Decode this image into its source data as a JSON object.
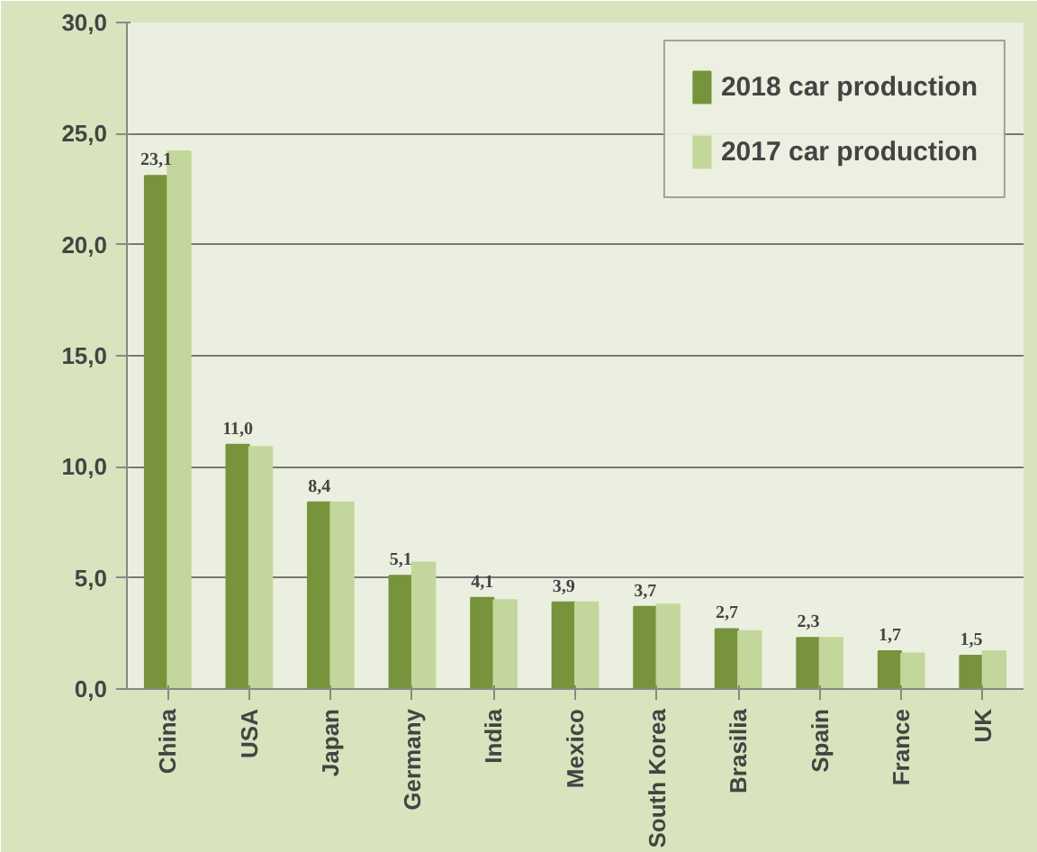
{
  "chart_data": {
    "type": "bar",
    "categories": [
      "China",
      "USA",
      "Japan",
      "Germany",
      "India",
      "Mexico",
      "South Korea",
      "Brasilia",
      "Spain",
      "France",
      "UK"
    ],
    "series": [
      {
        "name": "2018 car production",
        "color": "#77933c",
        "values": [
          23.1,
          11.0,
          8.4,
          5.1,
          4.1,
          3.9,
          3.7,
          2.7,
          2.3,
          1.7,
          1.5
        ],
        "value_labels": [
          "23,1",
          "11,0",
          "8,4",
          "5,1",
          "4,1",
          "3,9",
          "3,7",
          "2,7",
          "2,3",
          "1,7",
          "1,5"
        ]
      },
      {
        "name": "2017 car production",
        "color": "#c3d69b",
        "values": [
          24.2,
          10.9,
          8.4,
          5.7,
          4.0,
          3.9,
          3.8,
          2.6,
          2.3,
          1.6,
          1.7
        ]
      }
    ],
    "ylim": [
      0,
      30
    ],
    "yticks": [
      {
        "value": 0,
        "label": "0,0"
      },
      {
        "value": 5,
        "label": "5,0"
      },
      {
        "value": 10,
        "label": "10,0"
      },
      {
        "value": 15,
        "label": "15,0"
      },
      {
        "value": 20,
        "label": "20,0"
      },
      {
        "value": 25,
        "label": "25,0"
      },
      {
        "value": 30,
        "label": "30,0"
      }
    ],
    "grid": "y",
    "legend": "top right"
  }
}
